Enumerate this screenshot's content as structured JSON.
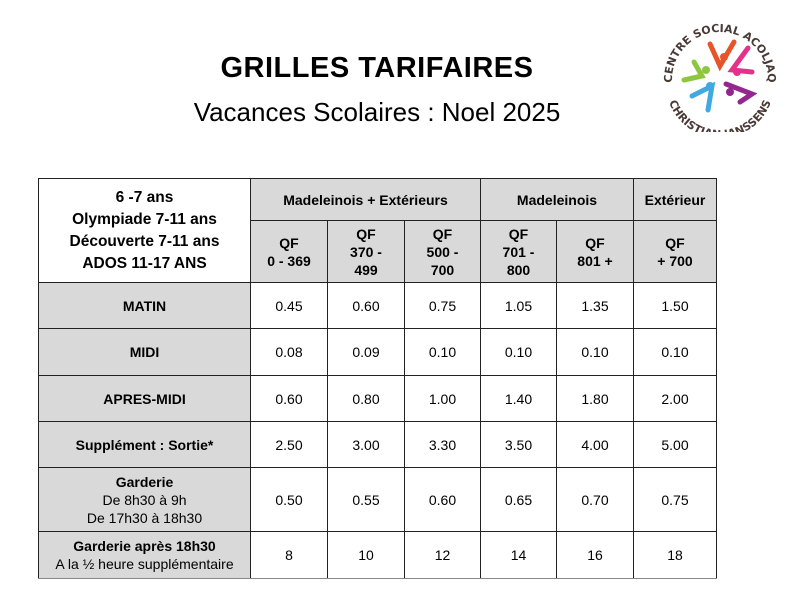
{
  "header": {
    "title": "GRILLES TARIFAIRES",
    "subtitle": "Vacances Scolaires : Noel 2025"
  },
  "logo": {
    "top_text": "CENTRE SOCIAL ACOLJAQ",
    "bottom_text": "CHRISTIAN JANSSENS",
    "colors": [
      "#e8542a",
      "#e6318a",
      "#8dc63f",
      "#3fa9e0",
      "#93268f"
    ]
  },
  "table": {
    "corner": [
      "6 -7 ans",
      "Olympiade 7-11 ans",
      "Découverte 7-11 ans",
      "ADOS 11-17 ANS"
    ],
    "groups": [
      "Madeleinois + Extérieurs",
      "Madeleinois",
      "Extérieur"
    ],
    "qf": [
      [
        "QF",
        "0 - 369"
      ],
      [
        "QF",
        "370 -",
        "499"
      ],
      [
        "QF",
        "500 -",
        "700"
      ],
      [
        "QF",
        "701 -",
        "800"
      ],
      [
        "QF",
        "801 +"
      ],
      [
        "QF",
        "+ 700"
      ]
    ],
    "rows": [
      {
        "label": [
          "MATIN"
        ],
        "values": [
          "0.45",
          "0.60",
          "0.75",
          "1.05",
          "1.35",
          "1.50"
        ]
      },
      {
        "label": [
          "MIDI"
        ],
        "values": [
          "0.08",
          "0.09",
          "0.10",
          "0.10",
          "0.10",
          "0.10"
        ]
      },
      {
        "label": [
          "APRES-MIDI"
        ],
        "values": [
          "0.60",
          "0.80",
          "1.00",
          "1.40",
          "1.80",
          "2.00"
        ]
      },
      {
        "label": [
          "Supplément : Sortie*"
        ],
        "values": [
          "2.50",
          "3.00",
          "3.30",
          "3.50",
          "4.00",
          "5.00"
        ]
      },
      {
        "label": [
          "Garderie",
          "De 8h30 à 9h",
          "De 17h30 à 18h30"
        ],
        "values": [
          "0.50",
          "0.55",
          "0.60",
          "0.65",
          "0.70",
          "0.75"
        ]
      },
      {
        "label": [
          "Garderie après 18h30",
          "A la ½ heure supplémentaire"
        ],
        "values": [
          "8",
          "10",
          "12",
          "14",
          "16",
          "18"
        ]
      }
    ]
  }
}
